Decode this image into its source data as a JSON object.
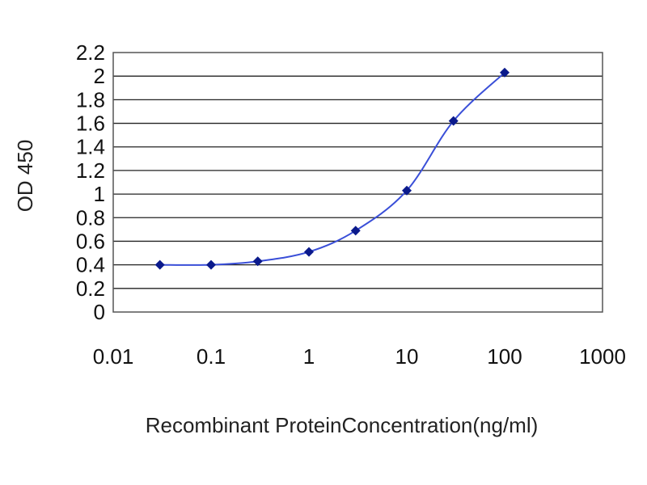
{
  "chart_data": {
    "type": "line",
    "title": "",
    "xlabel": "Recombinant ProteinConcentration(ng/ml)",
    "ylabel": "OD 450",
    "xscale": "log",
    "xlim": [
      0.01,
      1000
    ],
    "ylim": [
      0,
      2.2
    ],
    "xticks": [
      "0.01",
      "0.1",
      "1",
      "10",
      "100",
      "1000"
    ],
    "yticks": [
      "0",
      "0.2",
      "0.4",
      "0.6",
      "0.8",
      "1",
      "1.2",
      "1.4",
      "1.6",
      "1.8",
      "2",
      "2.2"
    ],
    "grid": true,
    "legend": "none",
    "series": [
      {
        "x": [
          0.03,
          0.1,
          0.3,
          1,
          3,
          10,
          30,
          100
        ],
        "y": [
          0.4,
          0.4,
          0.43,
          0.51,
          0.69,
          1.03,
          1.62,
          2.03
        ]
      }
    ],
    "colors": {
      "line": "#3a4fd8",
      "marker": "#0b1a8c",
      "grid": "#222222",
      "frame": "#555555"
    }
  }
}
